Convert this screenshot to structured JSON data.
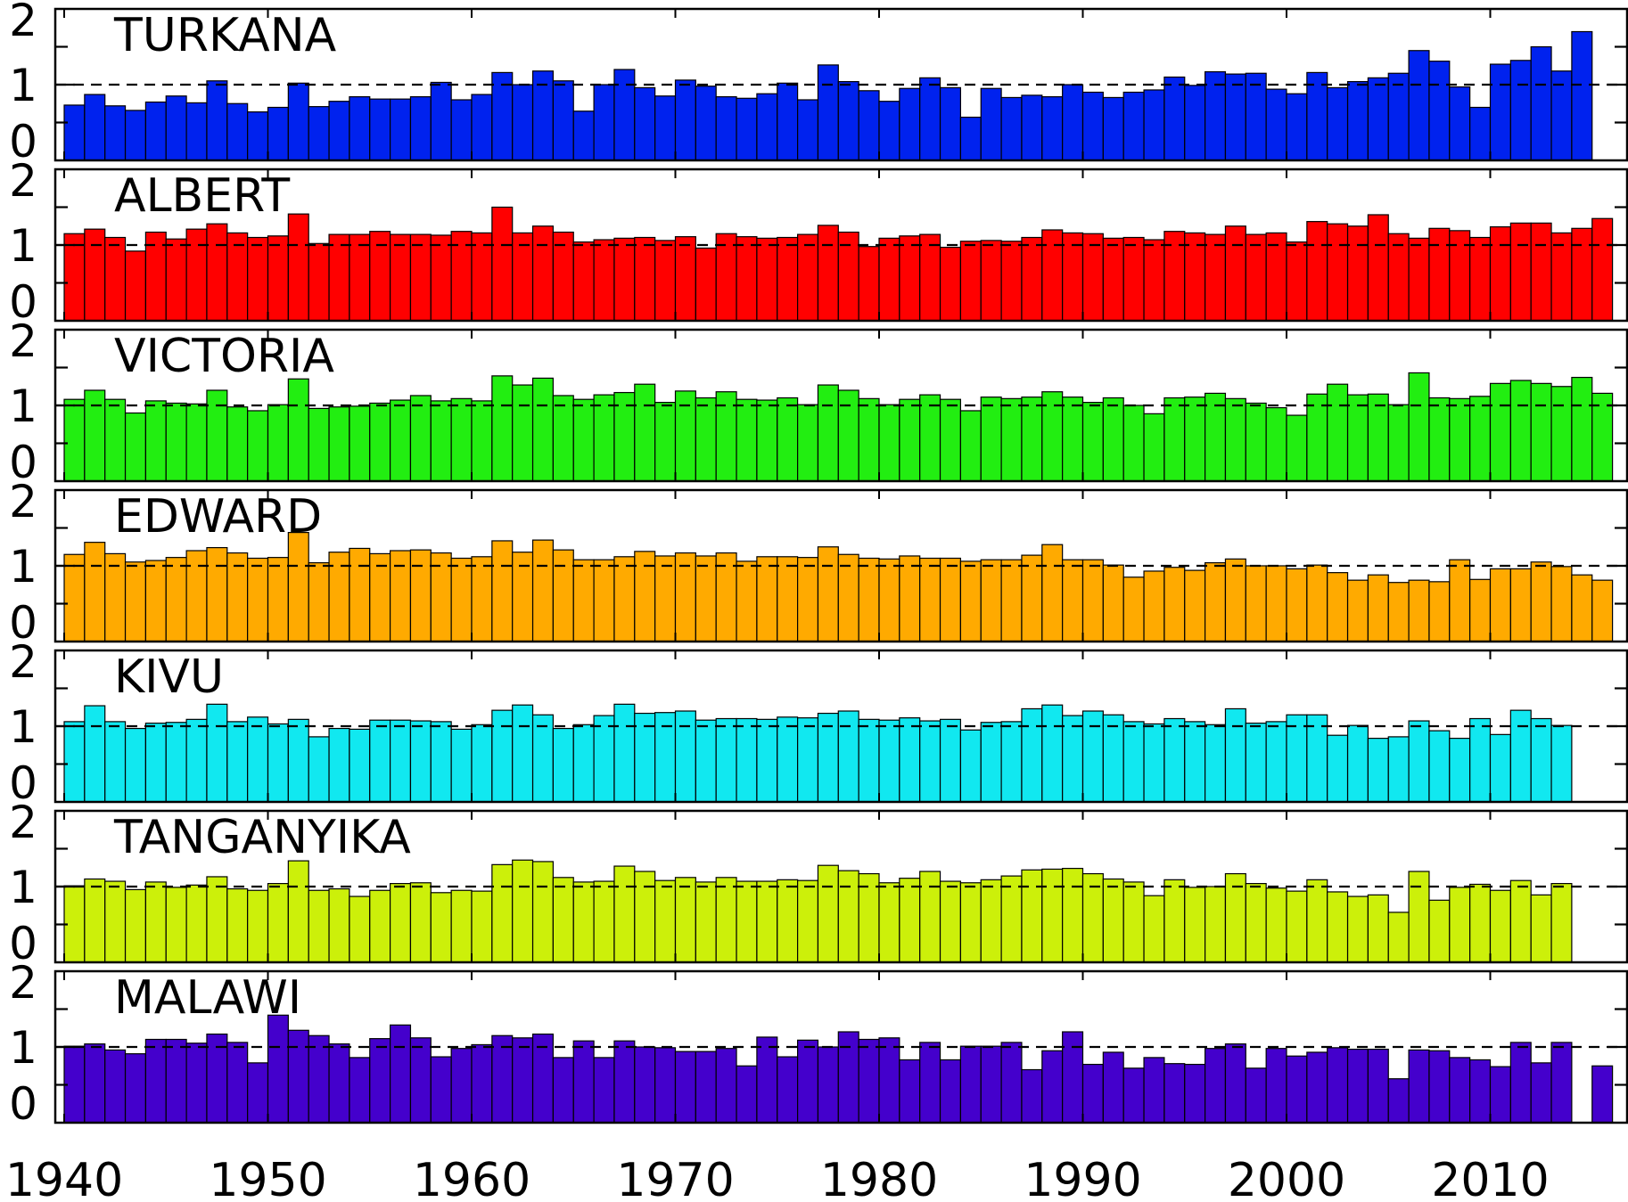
{
  "chart_data": {
    "type": "bar",
    "years": [
      1940,
      1941,
      1942,
      1943,
      1944,
      1945,
      1946,
      1947,
      1948,
      1949,
      1950,
      1951,
      1952,
      1953,
      1954,
      1955,
      1956,
      1957,
      1958,
      1959,
      1960,
      1961,
      1962,
      1963,
      1964,
      1965,
      1966,
      1967,
      1968,
      1969,
      1970,
      1971,
      1972,
      1973,
      1974,
      1975,
      1976,
      1977,
      1978,
      1979,
      1980,
      1981,
      1982,
      1983,
      1984,
      1985,
      1986,
      1987,
      1988,
      1989,
      1990,
      1991,
      1992,
      1993,
      1994,
      1995,
      1996,
      1997,
      1998,
      1999,
      2000,
      2001,
      2002,
      2003,
      2004,
      2005,
      2006,
      2007,
      2008,
      2009,
      2010,
      2011,
      2012,
      2013,
      2014,
      2015,
      2016
    ],
    "x_ticks": [
      "1940",
      "1950",
      "1960",
      "1970",
      "1980",
      "1990",
      "2000",
      "2010"
    ],
    "y_ticks": [
      "0",
      "1",
      "2"
    ],
    "ylim": [
      0,
      2.0
    ],
    "reference_line": 1.0,
    "panels": [
      {
        "name": "TURKANA",
        "color": "#0022ee",
        "values": [
          0.73,
          0.87,
          0.72,
          0.66,
          0.77,
          0.85,
          0.76,
          1.05,
          0.75,
          0.64,
          0.7,
          1.02,
          0.71,
          0.78,
          0.84,
          0.81,
          0.81,
          0.84,
          1.03,
          0.8,
          0.87,
          1.16,
          1.0,
          1.18,
          1.05,
          0.65,
          1.0,
          1.2,
          0.96,
          0.85,
          1.06,
          0.98,
          0.84,
          0.82,
          0.88,
          1.02,
          0.8,
          1.26,
          1.04,
          0.92,
          0.78,
          0.95,
          1.09,
          0.96,
          0.57,
          0.95,
          0.83,
          0.86,
          0.84,
          1.0,
          0.9,
          0.83,
          0.9,
          0.93,
          1.1,
          0.99,
          1.17,
          1.14,
          1.15,
          0.94,
          0.88,
          1.16,
          0.96,
          1.04,
          1.09,
          1.15,
          1.45,
          1.31,
          0.97,
          0.7,
          1.27,
          1.32,
          1.5,
          1.18,
          1.7,
          null,
          null
        ]
      },
      {
        "name": "ALBERT",
        "color": "#ff0000",
        "values": [
          1.15,
          1.21,
          1.1,
          0.92,
          1.17,
          1.08,
          1.21,
          1.28,
          1.16,
          1.1,
          1.12,
          1.41,
          1.02,
          1.14,
          1.14,
          1.18,
          1.14,
          1.14,
          1.13,
          1.18,
          1.16,
          1.5,
          1.16,
          1.25,
          1.17,
          1.04,
          1.07,
          1.09,
          1.1,
          1.06,
          1.11,
          0.96,
          1.15,
          1.11,
          1.09,
          1.1,
          1.14,
          1.26,
          1.17,
          0.98,
          1.09,
          1.12,
          1.14,
          0.97,
          1.05,
          1.06,
          1.05,
          1.1,
          1.2,
          1.16,
          1.15,
          1.09,
          1.1,
          1.07,
          1.18,
          1.16,
          1.14,
          1.25,
          1.14,
          1.16,
          1.04,
          1.31,
          1.28,
          1.25,
          1.4,
          1.15,
          1.09,
          1.22,
          1.19,
          1.1,
          1.24,
          1.29,
          1.29,
          1.16,
          1.22,
          1.35,
          null
        ]
      },
      {
        "name": "VICTORIA",
        "color": "#22ee11",
        "values": [
          1.08,
          1.2,
          1.08,
          0.9,
          1.06,
          1.03,
          1.02,
          1.2,
          0.98,
          0.93,
          1.01,
          1.35,
          0.96,
          0.98,
          0.99,
          1.03,
          1.07,
          1.13,
          1.06,
          1.09,
          1.06,
          1.39,
          1.27,
          1.36,
          1.13,
          1.08,
          1.14,
          1.17,
          1.28,
          1.04,
          1.19,
          1.1,
          1.18,
          1.08,
          1.07,
          1.1,
          1.01,
          1.27,
          1.2,
          1.09,
          1.01,
          1.08,
          1.14,
          1.08,
          0.93,
          1.11,
          1.09,
          1.11,
          1.18,
          1.11,
          1.04,
          1.1,
          1.0,
          0.89,
          1.1,
          1.11,
          1.16,
          1.09,
          1.03,
          0.97,
          0.87,
          1.15,
          1.28,
          1.14,
          1.15,
          1.01,
          1.43,
          1.1,
          1.09,
          1.12,
          1.29,
          1.33,
          1.29,
          1.25,
          1.37,
          1.16,
          null
        ]
      },
      {
        "name": "EDWARD",
        "color": "#ffaa00",
        "values": [
          1.15,
          1.31,
          1.16,
          1.05,
          1.07,
          1.11,
          1.2,
          1.24,
          1.17,
          1.1,
          1.11,
          1.44,
          1.04,
          1.18,
          1.23,
          1.16,
          1.2,
          1.21,
          1.17,
          1.1,
          1.12,
          1.33,
          1.18,
          1.34,
          1.21,
          1.08,
          1.08,
          1.12,
          1.19,
          1.13,
          1.17,
          1.13,
          1.17,
          1.06,
          1.12,
          1.12,
          1.11,
          1.25,
          1.15,
          1.1,
          1.09,
          1.13,
          1.1,
          1.1,
          1.06,
          1.08,
          1.08,
          1.14,
          1.28,
          1.08,
          1.08,
          1.01,
          0.85,
          0.93,
          0.98,
          0.94,
          1.04,
          1.09,
          1.0,
          1.0,
          0.96,
          1.01,
          0.91,
          0.81,
          0.88,
          0.78,
          0.81,
          0.79,
          1.08,
          0.82,
          0.96,
          0.96,
          1.05,
          0.99,
          0.88,
          0.81,
          null
        ]
      },
      {
        "name": "KIVU",
        "color": "#11e8f0",
        "values": [
          1.06,
          1.27,
          1.06,
          0.97,
          1.04,
          1.05,
          1.09,
          1.29,
          1.06,
          1.12,
          1.03,
          1.09,
          0.86,
          0.97,
          0.96,
          1.08,
          1.08,
          1.07,
          1.06,
          0.96,
          1.02,
          1.21,
          1.28,
          1.15,
          0.97,
          1.02,
          1.14,
          1.29,
          1.17,
          1.18,
          1.2,
          1.08,
          1.1,
          1.1,
          1.09,
          1.12,
          1.11,
          1.17,
          1.2,
          1.09,
          1.08,
          1.11,
          1.07,
          1.09,
          0.95,
          1.05,
          1.06,
          1.23,
          1.28,
          1.14,
          1.2,
          1.15,
          1.06,
          1.03,
          1.1,
          1.06,
          1.02,
          1.23,
          1.04,
          1.06,
          1.15,
          1.15,
          0.88,
          1.01,
          0.84,
          0.86,
          1.07,
          0.94,
          0.84,
          1.1,
          0.89,
          1.21,
          1.1,
          1.01,
          null,
          null,
          null
        ]
      },
      {
        "name": "TANGANYIKA",
        "color": "#ccf00a",
        "values": [
          1.01,
          1.1,
          1.07,
          0.96,
          1.06,
          0.99,
          1.02,
          1.13,
          0.97,
          0.95,
          1.04,
          1.34,
          0.95,
          0.97,
          0.87,
          0.95,
          1.04,
          1.05,
          0.92,
          0.95,
          0.94,
          1.29,
          1.35,
          1.33,
          1.12,
          1.06,
          1.07,
          1.27,
          1.2,
          1.08,
          1.12,
          1.06,
          1.12,
          1.07,
          1.07,
          1.09,
          1.08,
          1.28,
          1.21,
          1.17,
          1.05,
          1.11,
          1.2,
          1.07,
          1.05,
          1.09,
          1.14,
          1.22,
          1.23,
          1.24,
          1.17,
          1.1,
          1.06,
          0.88,
          1.09,
          0.99,
          1.0,
          1.17,
          1.04,
          0.98,
          0.94,
          1.09,
          0.93,
          0.87,
          0.89,
          0.66,
          1.2,
          0.82,
          0.99,
          1.03,
          0.95,
          1.08,
          0.89,
          1.04,
          null,
          null,
          null
        ]
      },
      {
        "name": "MALAWI",
        "color": "#4400cc",
        "values": [
          1.01,
          1.04,
          0.96,
          0.91,
          1.1,
          1.1,
          1.05,
          1.17,
          1.06,
          0.79,
          1.42,
          1.22,
          1.15,
          1.04,
          0.86,
          1.11,
          1.29,
          1.12,
          0.87,
          0.98,
          1.03,
          1.15,
          1.12,
          1.17,
          0.86,
          1.08,
          0.86,
          1.08,
          1.0,
          0.99,
          0.94,
          0.94,
          0.98,
          0.75,
          1.13,
          0.87,
          1.09,
          1.0,
          1.2,
          1.1,
          1.12,
          0.83,
          1.06,
          0.83,
          1.01,
          1.01,
          1.06,
          0.7,
          0.95,
          1.2,
          0.77,
          0.93,
          0.72,
          0.86,
          0.78,
          0.77,
          0.98,
          1.04,
          0.72,
          0.98,
          0.88,
          0.93,
          0.99,
          0.97,
          0.97,
          0.58,
          0.96,
          0.95,
          0.86,
          0.83,
          0.74,
          1.06,
          0.79,
          1.06,
          null,
          0.75,
          null
        ]
      }
    ]
  }
}
